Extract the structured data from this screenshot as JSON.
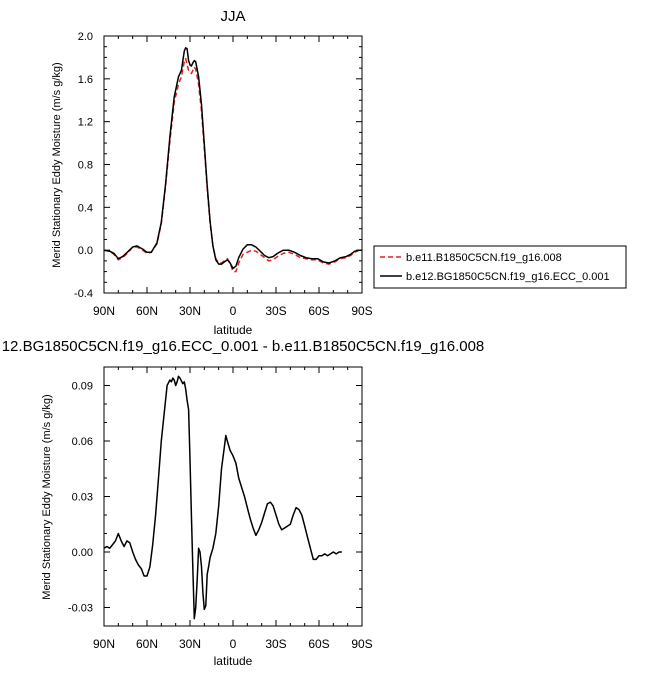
{
  "chart_data": [
    {
      "type": "line",
      "title": "JJA",
      "xlabel": "latitude",
      "ylabel": "Merid Stationary Eddy Moisture (m/s g/kg)",
      "xlim": [
        90,
        -90
      ],
      "ylim": [
        -0.4,
        2.0
      ],
      "x_ticks": [
        90,
        60,
        30,
        0,
        -30,
        -60,
        -90
      ],
      "x_tick_labels": [
        "90N",
        "60N",
        "30N",
        "0",
        "30S",
        "60S",
        "90S"
      ],
      "y_ticks": [
        2.0,
        1.6,
        1.2,
        0.8,
        0.4,
        0.0,
        -0.4
      ],
      "y_tick_labels": [
        "2.0",
        "1.6",
        "1.2",
        "0.8",
        "0.4",
        "0.0",
        "-0.4"
      ],
      "legend_position": "right",
      "series": [
        {
          "name": "b.e11.B1850C5CN.f19_g16.008",
          "color": "#e02020",
          "dash": "dashed",
          "points": [
            [
              90,
              0.0
            ],
            [
              86,
              -0.01
            ],
            [
              83,
              -0.04
            ],
            [
              80,
              -0.09
            ],
            [
              77,
              -0.07
            ],
            [
              73,
              -0.02
            ],
            [
              70,
              0.03
            ],
            [
              67,
              0.03
            ],
            [
              63,
              0.0
            ],
            [
              60,
              -0.03
            ],
            [
              57,
              -0.02
            ],
            [
              53,
              0.06
            ],
            [
              50,
              0.25
            ],
            [
              47,
              0.6
            ],
            [
              44,
              1.02
            ],
            [
              41,
              1.38
            ],
            [
              38,
              1.55
            ],
            [
              36,
              1.62
            ],
            [
              34,
              1.76
            ],
            [
              33,
              1.79
            ],
            [
              32,
              1.73
            ],
            [
              31,
              1.68
            ],
            [
              30,
              1.66
            ],
            [
              29,
              1.65
            ],
            [
              28,
              1.68
            ],
            [
              27,
              1.71
            ],
            [
              26,
              1.69
            ],
            [
              24,
              1.55
            ],
            [
              22,
              1.3
            ],
            [
              20,
              0.95
            ],
            [
              18,
              0.58
            ],
            [
              16,
              0.25
            ],
            [
              14,
              0.04
            ],
            [
              12,
              -0.08
            ],
            [
              10,
              -0.12
            ],
            [
              8,
              -0.12
            ],
            [
              6,
              -0.1
            ],
            [
              4,
              -0.08
            ],
            [
              2,
              -0.12
            ],
            [
              0,
              -0.2
            ],
            [
              -2,
              -0.2
            ],
            [
              -4,
              -0.12
            ],
            [
              -7,
              -0.04
            ],
            [
              -10,
              -0.02
            ],
            [
              -13,
              0.0
            ],
            [
              -16,
              -0.01
            ],
            [
              -19,
              -0.04
            ],
            [
              -22,
              -0.07
            ],
            [
              -25,
              -0.1
            ],
            [
              -28,
              -0.09
            ],
            [
              -31,
              -0.06
            ],
            [
              -35,
              -0.03
            ],
            [
              -39,
              -0.02
            ],
            [
              -43,
              -0.04
            ],
            [
              -47,
              -0.07
            ],
            [
              -51,
              -0.08
            ],
            [
              -55,
              -0.09
            ],
            [
              -59,
              -0.09
            ],
            [
              -63,
              -0.12
            ],
            [
              -67,
              -0.13
            ],
            [
              -71,
              -0.11
            ],
            [
              -75,
              -0.08
            ],
            [
              -79,
              -0.07
            ],
            [
              -82,
              -0.05
            ],
            [
              -85,
              -0.02
            ],
            [
              -88,
              0.0
            ],
            [
              -90,
              0.0
            ]
          ]
        },
        {
          "name": "b.e12.BG1850C5CN.f19_g16.ECC_0.001",
          "color": "#000000",
          "dash": "solid",
          "points": [
            [
              90,
              0.0
            ],
            [
              86,
              -0.01
            ],
            [
              83,
              -0.03
            ],
            [
              80,
              -0.08
            ],
            [
              77,
              -0.06
            ],
            [
              73,
              -0.01
            ],
            [
              70,
              0.03
            ],
            [
              67,
              0.04
            ],
            [
              63,
              0.01
            ],
            [
              60,
              -0.02
            ],
            [
              57,
              -0.02
            ],
            [
              53,
              0.07
            ],
            [
              50,
              0.26
            ],
            [
              47,
              0.62
            ],
            [
              44,
              1.06
            ],
            [
              41,
              1.43
            ],
            [
              38,
              1.62
            ],
            [
              36,
              1.68
            ],
            [
              34,
              1.86
            ],
            [
              33,
              1.89
            ],
            [
              32,
              1.88
            ],
            [
              31,
              1.77
            ],
            [
              30,
              1.73
            ],
            [
              29,
              1.72
            ],
            [
              28,
              1.75
            ],
            [
              27,
              1.77
            ],
            [
              26,
              1.76
            ],
            [
              24,
              1.62
            ],
            [
              22,
              1.36
            ],
            [
              20,
              0.99
            ],
            [
              18,
              0.6
            ],
            [
              16,
              0.27
            ],
            [
              14,
              0.04
            ],
            [
              12,
              -0.09
            ],
            [
              10,
              -0.13
            ],
            [
              8,
              -0.13
            ],
            [
              6,
              -0.11
            ],
            [
              4,
              -0.09
            ],
            [
              2,
              -0.12
            ],
            [
              0,
              -0.17
            ],
            [
              -2,
              -0.15
            ],
            [
              -4,
              -0.07
            ],
            [
              -7,
              0.01
            ],
            [
              -10,
              0.05
            ],
            [
              -13,
              0.05
            ],
            [
              -16,
              0.03
            ],
            [
              -19,
              -0.01
            ],
            [
              -22,
              -0.05
            ],
            [
              -25,
              -0.07
            ],
            [
              -28,
              -0.06
            ],
            [
              -31,
              -0.03
            ],
            [
              -35,
              0.0
            ],
            [
              -39,
              0.0
            ],
            [
              -43,
              -0.02
            ],
            [
              -47,
              -0.05
            ],
            [
              -51,
              -0.07
            ],
            [
              -55,
              -0.08
            ],
            [
              -59,
              -0.08
            ],
            [
              -63,
              -0.11
            ],
            [
              -67,
              -0.12
            ],
            [
              -71,
              -0.1
            ],
            [
              -75,
              -0.07
            ],
            [
              -79,
              -0.06
            ],
            [
              -82,
              -0.04
            ],
            [
              -85,
              -0.01
            ],
            [
              -88,
              0.0
            ],
            [
              -90,
              0.0
            ]
          ]
        }
      ]
    },
    {
      "type": "line",
      "title": "12.BG1850C5CN.f19_g16.ECC_0.001 - b.e11.B1850C5CN.f19_g16.008",
      "xlabel": "latitude",
      "ylabel": "Merid Stationary Eddy Moisture (m/s g/kg)",
      "xlim": [
        90,
        -90
      ],
      "ylim": [
        -0.04,
        0.1
      ],
      "x_ticks": [
        90,
        60,
        30,
        0,
        -30,
        -60,
        -90
      ],
      "x_tick_labels": [
        "90N",
        "60N",
        "30N",
        "0",
        "30S",
        "60S",
        "90S"
      ],
      "y_ticks": [
        0.09,
        0.06,
        0.03,
        0.0,
        -0.03
      ],
      "y_tick_labels": [
        "0.09",
        "0.06",
        "0.03",
        "0.00",
        "-0.03"
      ],
      "series": [
        {
          "color": "#000000",
          "dash": "solid",
          "points": [
            [
              90,
              0.002
            ],
            [
              88,
              0.003
            ],
            [
              86,
              0.002
            ],
            [
              84,
              0.004
            ],
            [
              82,
              0.006
            ],
            [
              80,
              0.01
            ],
            [
              78,
              0.006
            ],
            [
              76,
              0.003
            ],
            [
              74,
              0.006
            ],
            [
              72,
              0.005
            ],
            [
              70,
              0.0
            ],
            [
              68,
              -0.004
            ],
            [
              66,
              -0.007
            ],
            [
              64,
              -0.009
            ],
            [
              62,
              -0.013
            ],
            [
              60,
              -0.013
            ],
            [
              58,
              -0.008
            ],
            [
              56,
              0.004
            ],
            [
              54,
              0.02
            ],
            [
              52,
              0.04
            ],
            [
              50,
              0.06
            ],
            [
              48,
              0.075
            ],
            [
              46,
              0.09
            ],
            [
              44,
              0.093
            ],
            [
              43,
              0.092
            ],
            [
              42,
              0.094
            ],
            [
              41,
              0.093
            ],
            [
              40,
              0.09
            ],
            [
              39,
              0.092
            ],
            [
              38,
              0.095
            ],
            [
              37,
              0.094
            ],
            [
              35,
              0.091
            ],
            [
              34,
              0.092
            ],
            [
              33,
              0.088
            ],
            [
              32,
              0.082
            ],
            [
              31,
              0.077
            ],
            [
              30,
              0.05
            ],
            [
              29,
              0.02
            ],
            [
              28,
              -0.01
            ],
            [
              27,
              -0.036
            ],
            [
              26,
              -0.03
            ],
            [
              25,
              -0.015
            ],
            [
              24,
              0.002
            ],
            [
              23,
              0.0
            ],
            [
              22,
              -0.008
            ],
            [
              21,
              -0.022
            ],
            [
              20,
              -0.031
            ],
            [
              19,
              -0.029
            ],
            [
              18,
              -0.012
            ],
            [
              17,
              -0.008
            ],
            [
              16,
              -0.003
            ],
            [
              14,
              0.002
            ],
            [
              12,
              0.01
            ],
            [
              10,
              0.025
            ],
            [
              8,
              0.045
            ],
            [
              6,
              0.057
            ],
            [
              5,
              0.063
            ],
            [
              4,
              0.06
            ],
            [
              2,
              0.055
            ],
            [
              0,
              0.052
            ],
            [
              -2,
              0.048
            ],
            [
              -4,
              0.04
            ],
            [
              -6,
              0.035
            ],
            [
              -8,
              0.03
            ],
            [
              -10,
              0.024
            ],
            [
              -12,
              0.018
            ],
            [
              -14,
              0.013
            ],
            [
              -16,
              0.009
            ],
            [
              -18,
              0.012
            ],
            [
              -20,
              0.016
            ],
            [
              -22,
              0.021
            ],
            [
              -24,
              0.026
            ],
            [
              -26,
              0.027
            ],
            [
              -28,
              0.025
            ],
            [
              -30,
              0.02
            ],
            [
              -32,
              0.015
            ],
            [
              -34,
              0.012
            ],
            [
              -36,
              0.013
            ],
            [
              -38,
              0.014
            ],
            [
              -40,
              0.015
            ],
            [
              -42,
              0.02
            ],
            [
              -44,
              0.024
            ],
            [
              -46,
              0.023
            ],
            [
              -48,
              0.02
            ],
            [
              -50,
              0.014
            ],
            [
              -52,
              0.008
            ],
            [
              -54,
              0.002
            ],
            [
              -56,
              -0.004
            ],
            [
              -58,
              -0.004
            ],
            [
              -60,
              -0.002
            ],
            [
              -62,
              -0.002
            ],
            [
              -64,
              -0.001
            ],
            [
              -66,
              -0.002
            ],
            [
              -68,
              -0.001
            ],
            [
              -70,
              0.0
            ],
            [
              -72,
              -0.001
            ],
            [
              -74,
              0.0
            ],
            [
              -76,
              0.0
            ]
          ]
        }
      ]
    }
  ]
}
